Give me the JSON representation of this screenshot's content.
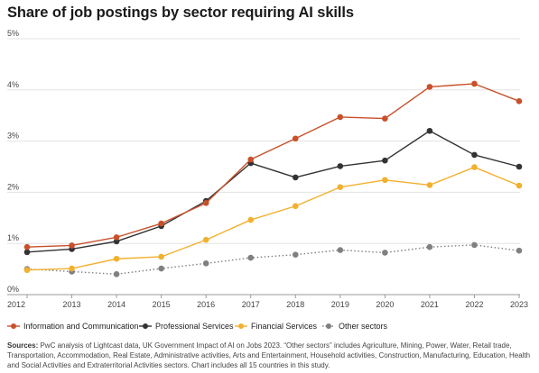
{
  "chart_data": {
    "type": "line",
    "title": "Share of job postings by sector requiring AI skills",
    "x": [
      "2012",
      "2013",
      "2014",
      "2015",
      "2016",
      "2017",
      "2018",
      "2019",
      "2020",
      "2021",
      "2022",
      "2023"
    ],
    "y_ticks": [
      "0%",
      "1%",
      "2%",
      "3%",
      "4%",
      "5%"
    ],
    "ylim": [
      0,
      5
    ],
    "grid": "horizontal",
    "legend_position": "bottom",
    "series": [
      {
        "name": "Information and Communication",
        "color": "#c8502a",
        "style": "solid",
        "values": [
          0.93,
          0.96,
          1.12,
          1.39,
          1.79,
          2.64,
          3.05,
          3.47,
          3.44,
          4.06,
          4.12,
          3.78
        ]
      },
      {
        "name": "Professional Services",
        "color": "#333333",
        "style": "solid",
        "values": [
          0.83,
          0.89,
          1.04,
          1.34,
          1.83,
          2.57,
          2.29,
          2.51,
          2.62,
          3.2,
          2.73,
          2.5
        ]
      },
      {
        "name": "Financial Services",
        "color": "#f2b02f",
        "style": "solid",
        "values": [
          0.48,
          0.51,
          0.7,
          0.74,
          1.07,
          1.46,
          1.73,
          2.1,
          2.24,
          2.14,
          2.49,
          2.13
        ]
      },
      {
        "name": "Other sectors",
        "color": "#808080",
        "style": "dotted",
        "values": [
          0.5,
          0.45,
          0.4,
          0.51,
          0.61,
          0.72,
          0.78,
          0.87,
          0.82,
          0.93,
          0.97,
          0.86
        ]
      }
    ]
  },
  "sources": {
    "label": "Sources:",
    "text": " PwC analysis of Lightcast data, UK Government Impact of AI on Jobs 2023. “Other sectors” includes Agriculture, Mining, Power, Water, Retail trade, Transportation, Accommodation, Real Estate, Administrative activities, Arts and Entertainment, Household activities, Construction, Manufacturing, Education, Health and Social Activities and Extraterritorial Activities sectors. Chart includes all 15 countries in this study."
  }
}
